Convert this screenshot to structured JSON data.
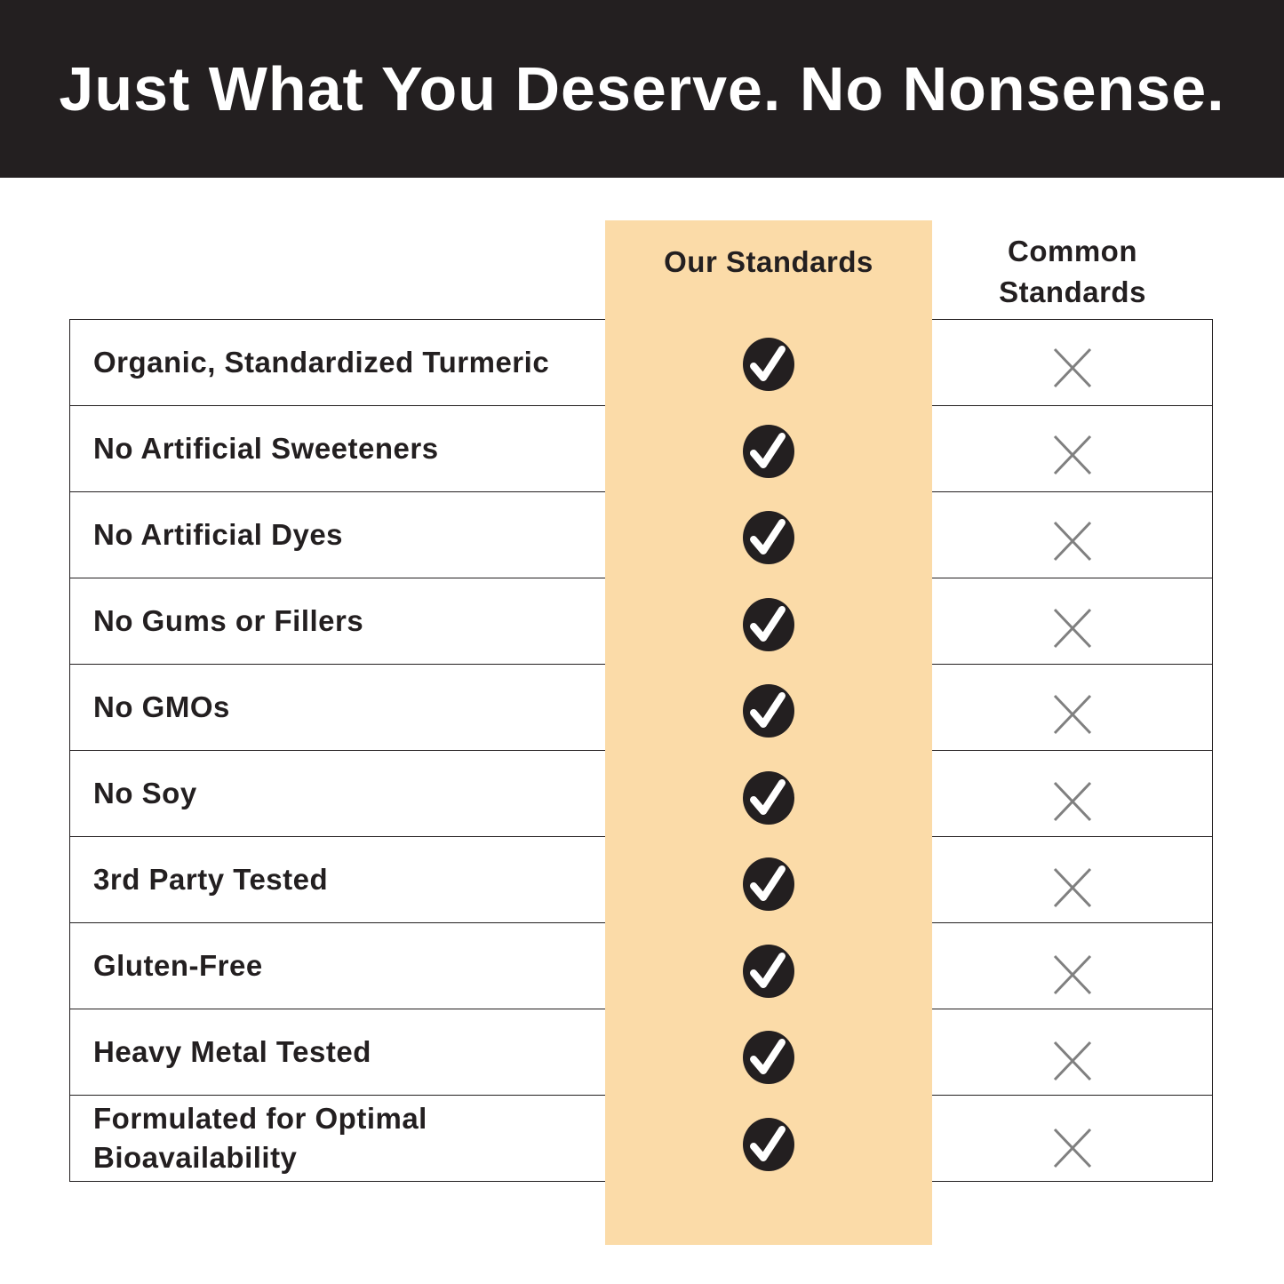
{
  "title": "Just What You Deserve. No Nonsense.",
  "columns": {
    "ours": "Our Standards",
    "common": "Common Standards"
  },
  "colors": {
    "banner": "#231f20",
    "highlight": "#fbdba8",
    "check": "#231f20",
    "cross": "#808080"
  },
  "rows": [
    {
      "label": "Organic, Standardized Turmeric",
      "ours": "check-icon",
      "common": "x-icon"
    },
    {
      "label": "No Artificial Sweeteners",
      "ours": "check-icon",
      "common": "x-icon"
    },
    {
      "label": "No Artificial Dyes",
      "ours": "check-icon",
      "common": "x-icon"
    },
    {
      "label": "No Gums or Fillers",
      "ours": "check-icon",
      "common": "x-icon"
    },
    {
      "label": "No GMOs",
      "ours": "check-icon",
      "common": "x-icon"
    },
    {
      "label": "No Soy",
      "ours": "check-icon",
      "common": "x-icon"
    },
    {
      "label": "3rd Party Tested",
      "ours": "check-icon",
      "common": "x-icon"
    },
    {
      "label": "Gluten-Free",
      "ours": "check-icon",
      "common": "x-icon"
    },
    {
      "label": "Heavy Metal Tested",
      "ours": "check-icon",
      "common": "x-icon"
    },
    {
      "label": "Formulated for Optimal Bioavailability",
      "ours": "check-icon",
      "common": "x-icon"
    }
  ]
}
